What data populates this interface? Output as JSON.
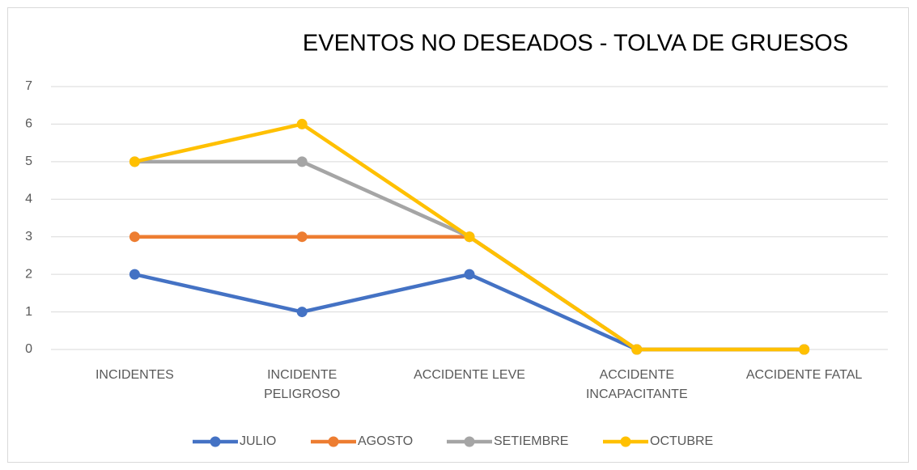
{
  "chart_data": {
    "type": "line",
    "title": "EVENTOS NO DESEADOS  - TOLVA DE GRUESOS",
    "categories": [
      "INCIDENTES",
      "INCIDENTE PELIGROSO",
      "ACCIDENTE LEVE",
      "ACCIDENTE INCAPACITANTE",
      "ACCIDENTE FATAL"
    ],
    "series": [
      {
        "name": "JULIO",
        "color": "#4472c4",
        "values": [
          2,
          1,
          2,
          0,
          0
        ]
      },
      {
        "name": "AGOSTO",
        "color": "#ed7d31",
        "values": [
          3,
          3,
          3,
          0,
          0
        ]
      },
      {
        "name": "SETIEMBRE",
        "color": "#a5a5a5",
        "values": [
          5,
          5,
          3,
          0,
          0
        ]
      },
      {
        "name": "OCTUBRE",
        "color": "#ffc000",
        "values": [
          5,
          6,
          3,
          0,
          0
        ]
      }
    ],
    "ylim": [
      0,
      7
    ],
    "yticks": [
      0,
      1,
      2,
      3,
      4,
      5,
      6,
      7
    ],
    "grid": true,
    "legend": "bottom"
  }
}
